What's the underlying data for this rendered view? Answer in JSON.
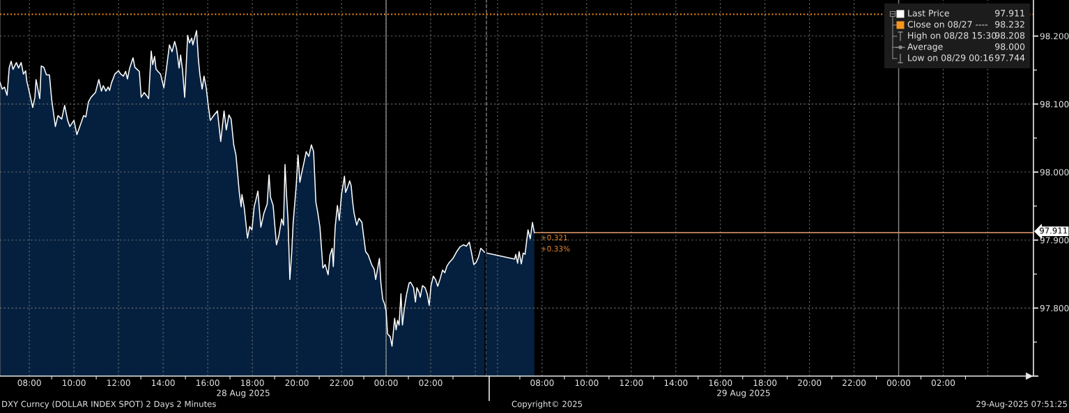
{
  "chart_data": [
    {
      "type": "area",
      "xlabel": "28 Aug 2025",
      "xlim": [
        "2025-08-28T06:41",
        "2025-08-29T04:30"
      ],
      "xticks": [
        {
          "value": "2025-08-28T08:00",
          "label": "08:00"
        },
        {
          "value": "2025-08-28T10:00",
          "label": "10:00"
        },
        {
          "value": "2025-08-28T12:00",
          "label": "12:00"
        },
        {
          "value": "2025-08-28T14:00",
          "label": "14:00"
        },
        {
          "value": "2025-08-28T16:00",
          "label": "16:00"
        },
        {
          "value": "2025-08-28T18:00",
          "label": "18:00"
        },
        {
          "value": "2025-08-28T20:00",
          "label": "20:00"
        },
        {
          "value": "2025-08-28T22:00",
          "label": "22:00"
        },
        {
          "value": "2025-08-29T00:00",
          "label": "00:00"
        },
        {
          "value": "2025-08-29T02:00",
          "label": "02:00"
        },
        {
          "value": "2025-08-29T04:00",
          "label": null
        }
      ],
      "ylim": [
        97.7,
        98.253
      ],
      "yticks": [
        97.7,
        97.8,
        97.9,
        98.0,
        98.1,
        98.2
      ],
      "tick_labels": "x",
      "grid": true,
      "x": [
        "2025-08-28T06:41",
        "2025-08-28T06:47",
        "2025-08-28T06:53",
        "2025-08-28T07:00",
        "2025-08-28T07:06",
        "2025-08-28T07:11",
        "2025-08-28T07:16",
        "2025-08-28T07:25",
        "2025-08-28T07:31",
        "2025-08-28T07:38",
        "2025-08-28T07:44",
        "2025-08-28T07:50",
        "2025-08-28T07:53",
        "2025-08-28T07:59",
        "2025-08-28T08:09",
        "2025-08-28T08:15",
        "2025-08-28T08:18",
        "2025-08-28T08:28",
        "2025-08-28T08:32",
        "2025-08-28T08:39",
        "2025-08-28T08:46",
        "2025-08-28T08:54",
        "2025-08-28T09:00",
        "2025-08-28T09:10",
        "2025-08-28T09:17",
        "2025-08-28T09:27",
        "2025-08-28T09:35",
        "2025-08-28T09:43",
        "2025-08-28T09:49",
        "2025-08-28T10:00",
        "2025-08-28T10:08",
        "2025-08-28T10:17",
        "2025-08-28T10:26",
        "2025-08-28T10:32",
        "2025-08-28T10:39",
        "2025-08-28T10:46",
        "2025-08-28T10:58",
        "2025-08-28T11:07",
        "2025-08-28T11:14",
        "2025-08-28T11:19",
        "2025-08-28T11:26",
        "2025-08-28T11:32",
        "2025-08-28T11:36",
        "2025-08-28T11:41",
        "2025-08-28T11:50",
        "2025-08-28T12:00",
        "2025-08-28T12:06",
        "2025-08-28T12:13",
        "2025-08-28T12:19",
        "2025-08-28T12:24",
        "2025-08-28T12:30",
        "2025-08-28T12:39",
        "2025-08-28T12:44",
        "2025-08-28T12:50",
        "2025-08-28T12:56",
        "2025-08-28T13:01",
        "2025-08-28T13:09",
        "2025-08-28T13:16",
        "2025-08-28T13:21",
        "2025-08-28T13:28",
        "2025-08-28T13:32",
        "2025-08-28T13:37",
        "2025-08-28T13:41",
        "2025-08-28T13:53",
        "2025-08-28T14:02",
        "2025-08-28T14:08",
        "2025-08-28T14:17",
        "2025-08-28T14:24",
        "2025-08-28T14:31",
        "2025-08-28T14:36",
        "2025-08-28T14:43",
        "2025-08-28T14:47",
        "2025-08-28T14:52",
        "2025-08-28T14:58",
        "2025-08-28T15:06",
        "2025-08-28T15:11",
        "2025-08-28T15:17",
        "2025-08-28T15:20",
        "2025-08-28T15:30",
        "2025-08-28T15:35",
        "2025-08-28T15:39",
        "2025-08-28T15:45",
        "2025-08-28T15:50",
        "2025-08-28T15:56",
        "2025-08-28T16:01",
        "2025-08-28T16:07",
        "2025-08-28T16:16",
        "2025-08-28T16:26",
        "2025-08-28T16:35",
        "2025-08-28T16:44",
        "2025-08-28T16:50",
        "2025-08-28T16:57",
        "2025-08-28T17:03",
        "2025-08-28T17:10",
        "2025-08-28T17:16",
        "2025-08-28T17:25",
        "2025-08-28T17:30",
        "2025-08-28T17:32",
        "2025-08-28T17:38",
        "2025-08-28T17:47",
        "2025-08-28T17:53",
        "2025-08-28T17:59",
        "2025-08-28T18:05",
        "2025-08-28T18:10",
        "2025-08-28T18:15",
        "2025-08-28T18:23",
        "2025-08-28T18:31",
        "2025-08-28T18:40",
        "2025-08-28T18:45",
        "2025-08-28T18:49",
        "2025-08-28T18:56",
        "2025-08-28T19:05",
        "2025-08-28T19:11",
        "2025-08-28T19:19",
        "2025-08-28T19:24",
        "2025-08-28T19:28",
        "2025-08-28T19:32",
        "2025-08-28T19:36",
        "2025-08-28T19:41",
        "2025-08-28T19:46",
        "2025-08-28T19:50",
        "2025-08-28T19:58",
        "2025-08-28T20:03",
        "2025-08-28T20:08",
        "2025-08-28T20:13",
        "2025-08-28T20:19",
        "2025-08-28T20:25",
        "2025-08-28T20:32",
        "2025-08-28T20:39",
        "2025-08-28T20:45",
        "2025-08-28T20:51",
        "2025-08-28T20:56",
        "2025-08-28T21:02",
        "2025-08-28T21:10",
        "2025-08-28T21:16",
        "2025-08-28T21:24",
        "2025-08-28T21:29",
        "2025-08-28T21:35",
        "2025-08-28T21:38",
        "2025-08-28T21:43",
        "2025-08-28T21:49",
        "2025-08-28T21:54",
        "2025-08-28T22:00",
        "2025-08-28T22:08",
        "2025-08-28T22:11",
        "2025-08-28T22:16",
        "2025-08-28T22:22",
        "2025-08-28T22:26",
        "2025-08-28T22:30",
        "2025-08-28T22:34",
        "2025-08-28T22:41",
        "2025-08-28T22:47",
        "2025-08-28T22:55",
        "2025-08-28T22:59",
        "2025-08-28T23:05",
        "2025-08-28T23:12",
        "2025-08-28T23:21",
        "2025-08-28T23:28",
        "2025-08-28T23:32",
        "2025-08-28T23:42",
        "2025-08-28T23:46",
        "2025-08-28T23:51",
        "2025-08-28T23:56",
        "2025-08-29T00:00",
        "2025-08-29T00:04",
        "2025-08-29T00:11",
        "2025-08-29T00:16",
        "2025-08-29T00:23",
        "2025-08-29T00:27",
        "2025-08-29T00:31",
        "2025-08-29T00:35",
        "2025-08-29T00:40",
        "2025-08-29T00:44",
        "2025-08-29T00:49",
        "2025-08-29T00:55",
        "2025-08-29T01:02",
        "2025-08-29T01:06",
        "2025-08-29T01:14",
        "2025-08-29T01:19",
        "2025-08-29T01:23",
        "2025-08-29T01:29",
        "2025-08-29T01:32",
        "2025-08-29T01:38",
        "2025-08-29T01:45",
        "2025-08-29T01:51",
        "2025-08-29T01:56",
        "2025-08-29T02:01",
        "2025-08-29T02:07",
        "2025-08-29T02:13",
        "2025-08-29T02:19",
        "2025-08-29T02:26",
        "2025-08-29T02:32",
        "2025-08-29T02:38",
        "2025-08-29T02:44",
        "2025-08-29T02:50",
        "2025-08-29T03:00",
        "2025-08-29T03:10",
        "2025-08-29T03:19",
        "2025-08-29T03:28",
        "2025-08-29T03:36",
        "2025-08-29T03:44",
        "2025-08-29T03:50",
        "2025-08-29T03:56",
        "2025-08-29T04:02",
        "2025-08-29T04:08",
        "2025-08-29T04:15",
        "2025-08-29T04:25"
      ],
      "series": [
        {
          "color": "#ffffff",
          "values": [
            98.132,
            98.122,
            98.125,
            98.113,
            98.154,
            98.163,
            98.151,
            98.161,
            98.153,
            98.161,
            98.144,
            98.149,
            98.134,
            98.12,
            98.095,
            98.11,
            98.136,
            98.108,
            98.156,
            98.154,
            98.143,
            98.143,
            98.107,
            98.067,
            98.083,
            98.078,
            98.098,
            98.076,
            98.067,
            98.076,
            98.055,
            98.069,
            98.083,
            98.081,
            98.103,
            98.11,
            98.117,
            98.136,
            98.119,
            98.127,
            98.119,
            98.125,
            98.12,
            98.131,
            98.144,
            98.149,
            98.144,
            98.141,
            98.148,
            98.137,
            98.153,
            98.168,
            98.154,
            98.151,
            98.148,
            98.11,
            98.117,
            98.112,
            98.108,
            98.178,
            98.158,
            98.17,
            98.151,
            98.144,
            98.124,
            98.148,
            98.187,
            98.177,
            98.192,
            98.182,
            98.153,
            98.172,
            98.151,
            98.11,
            98.201,
            98.19,
            98.197,
            98.187,
            98.208,
            98.165,
            98.143,
            98.122,
            98.141,
            98.124,
            98.1,
            98.076,
            98.083,
            98.09,
            98.045,
            98.09,
            98.062,
            98.084,
            98.078,
            98.04,
            98.025,
            97.97,
            97.949,
            97.967,
            97.949,
            97.903,
            97.92,
            97.915,
            97.949,
            97.96,
            97.972,
            97.919,
            97.939,
            97.953,
            97.996,
            97.963,
            97.951,
            97.893,
            97.905,
            97.931,
            97.922,
            98.011,
            97.967,
            97.931,
            97.842,
            97.881,
            97.926,
            97.979,
            98.025,
            97.985,
            97.999,
            98.014,
            98.03,
            98.023,
            98.04,
            98.03,
            97.956,
            97.941,
            97.919,
            97.859,
            97.864,
            97.849,
            97.878,
            97.888,
            97.861,
            97.919,
            97.951,
            97.929,
            97.967,
            97.994,
            97.97,
            97.977,
            97.987,
            97.98,
            97.956,
            97.939,
            97.922,
            97.932,
            97.926,
            97.908,
            97.883,
            97.878,
            97.864,
            97.857,
            97.842,
            97.873,
            97.837,
            97.813,
            97.806,
            97.796,
            97.762,
            97.758,
            97.744,
            97.785,
            97.768,
            97.782,
            97.775,
            97.821,
            97.775,
            97.799,
            97.82,
            97.837,
            97.838,
            97.83,
            97.809,
            97.83,
            97.823,
            97.816,
            97.833,
            97.83,
            97.82,
            97.804,
            97.833,
            97.847,
            97.842,
            97.832,
            97.844,
            97.856,
            97.852,
            97.862,
            97.867,
            97.873,
            97.883,
            97.89,
            97.893,
            97.891,
            97.897,
            97.881,
            97.864,
            97.867,
            97.874,
            97.888,
            97.882
          ]
        }
      ],
      "ref_lines": [
        {
          "axis": "y",
          "value": 98.232,
          "color": "#f7941d",
          "line_style": "dotted"
        },
        {
          "axis": "x",
          "value": "2025-08-29T00:00",
          "color": "#8a8a8a",
          "line_style": "solid"
        }
      ]
    },
    {
      "type": "area",
      "xlabel": "29 Aug 2025",
      "xlim": [
        "2025-08-29T05:30",
        "2025-08-30T06:03"
      ],
      "xticks": [
        {
          "value": "2025-08-29T06:00",
          "label": null
        },
        {
          "value": "2025-08-29T08:00",
          "label": "08:00"
        },
        {
          "value": "2025-08-29T10:00",
          "label": "10:00"
        },
        {
          "value": "2025-08-29T12:00",
          "label": "12:00"
        },
        {
          "value": "2025-08-29T14:00",
          "label": "14:00"
        },
        {
          "value": "2025-08-29T16:00",
          "label": "16:00"
        },
        {
          "value": "2025-08-29T18:00",
          "label": "18:00"
        },
        {
          "value": "2025-08-29T20:00",
          "label": "20:00"
        },
        {
          "value": "2025-08-29T22:00",
          "label": "22:00"
        },
        {
          "value": "2025-08-30T00:00",
          "label": "00:00"
        },
        {
          "value": "2025-08-30T02:00",
          "label": "02:00"
        },
        {
          "value": "2025-08-30T04:00",
          "label": null
        }
      ],
      "ylim": [
        97.7,
        98.253
      ],
      "yticks": [
        {
          "value": 97.7,
          "label": null
        },
        {
          "value": 97.8,
          "label": "97.800"
        },
        {
          "value": 97.9,
          "label": "97.900"
        },
        {
          "value": 98.0,
          "label": "98.000"
        },
        {
          "value": 98.1,
          "label": "98.100"
        },
        {
          "value": 98.2,
          "label": "98.200"
        }
      ],
      "grid": true,
      "legend": "top right",
      "x": [
        "2025-08-29T05:30",
        "2025-08-29T06:46",
        "2025-08-29T06:49",
        "2025-08-29T06:54",
        "2025-08-29T06:58",
        "2025-08-29T07:04",
        "2025-08-29T07:09",
        "2025-08-29T07:14",
        "2025-08-29T07:22",
        "2025-08-29T07:28",
        "2025-08-29T07:34",
        "2025-08-29T07:39"
      ],
      "series": [
        {
          "name": "Last Price",
          "color": "#ffffff",
          "values": [
            97.881,
            97.872,
            97.879,
            97.866,
            97.883,
            97.865,
            97.881,
            97.879,
            97.915,
            97.902,
            97.926,
            97.911
          ]
        }
      ],
      "ref_lines": [
        {
          "axis": "y",
          "value": 98.232,
          "label": "Close on 08/27 ----",
          "color": "#f7941d",
          "line_style": "dotted"
        },
        {
          "axis": "y",
          "value": 97.911,
          "label": "97.911",
          "color": "#e8a070",
          "line_style": "solid"
        },
        {
          "axis": "x",
          "value": "2025-08-30T00:00",
          "color": "#8a8a8a",
          "line_style": "solid"
        }
      ],
      "annotations": [
        "+0.321",
        "+0.33%",
        "97.911",
        "98.232",
        "High on 08/28 15:30",
        "98.208",
        "Average",
        "98.000",
        "Low on 08/29 00:16",
        "97.744",
        "DXY Curncy (DOLLAR INDEX SPOT) 2 Days 2 Minutes",
        "Copyright© 2025",
        "29-Aug-2025 07:51:25"
      ]
    }
  ]
}
